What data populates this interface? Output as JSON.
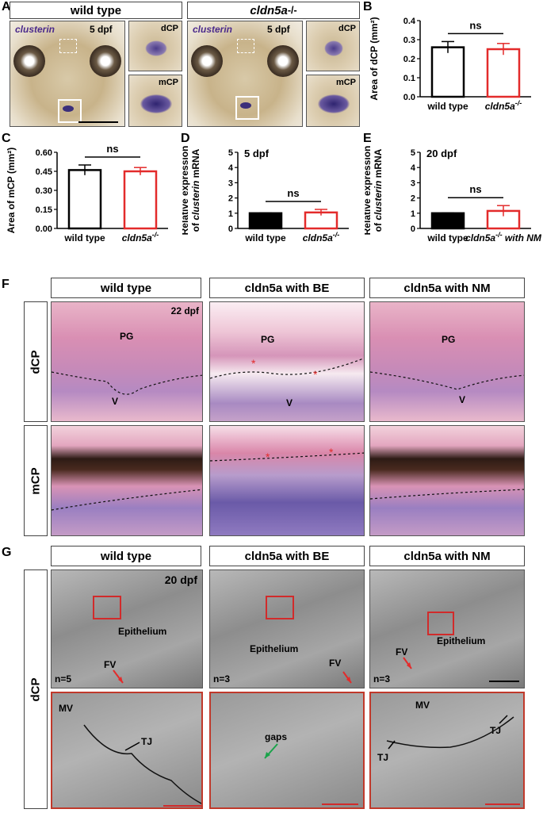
{
  "panels": {
    "A": {
      "label": "A",
      "headers": [
        "wild type",
        "cldn5a"
      ],
      "stain": "clusterin",
      "stage": "5 dpf",
      "insets": [
        "dCP",
        "mCP"
      ]
    },
    "B": {
      "label": "B"
    },
    "C": {
      "label": "C"
    },
    "D": {
      "label": "D",
      "stage": "5 dpf"
    },
    "E": {
      "label": "E",
      "stage": "20 dpf"
    },
    "F": {
      "label": "F",
      "col_headers": [
        "wild type",
        "cldn5a with BE",
        "cldn5a with NM"
      ],
      "row_labels": [
        "dCP",
        "mCP"
      ],
      "stage": "22 dpf",
      "labels": {
        "pg": "PG",
        "v": "V"
      }
    },
    "G": {
      "label": "G",
      "col_headers": [
        "wild type",
        "cldn5a with BE",
        "cldn5a with NM"
      ],
      "row_label": "dCP",
      "stage": "20 dpf",
      "epithelium": "Epithelium",
      "fv": "FV",
      "n": [
        "n=5",
        "n=3",
        "n=3"
      ],
      "mv": "MV",
      "tj": "TJ",
      "gaps": "gaps"
    }
  },
  "chart_data": [
    {
      "type": "bar",
      "panel": "B",
      "categories": [
        "wild type",
        "cldn5a-/-"
      ],
      "values": [
        0.26,
        0.25
      ],
      "errors": [
        0.03,
        0.03
      ],
      "ylabel": "Area of dCP (mm²)",
      "ylim": [
        0.0,
        0.4
      ],
      "yticks": [
        "0.0",
        "0.1",
        "0.2",
        "0.3",
        "0.4"
      ],
      "annotation": "ns",
      "colors": [
        "#000000",
        "#e32b2b"
      ]
    },
    {
      "type": "bar",
      "panel": "C",
      "categories": [
        "wild type",
        "cldn5a-/-"
      ],
      "values": [
        0.46,
        0.45
      ],
      "errors": [
        0.04,
        0.03
      ],
      "ylabel": "Area of mCP (mm²)",
      "ylim": [
        0.0,
        0.6
      ],
      "yticks": [
        "0.00",
        "0.15",
        "0.30",
        "0.45",
        "0.60"
      ],
      "annotation": "ns",
      "colors": [
        "#000000",
        "#e32b2b"
      ]
    },
    {
      "type": "bar",
      "panel": "D",
      "categories": [
        "wild type",
        "cldn5a-/-"
      ],
      "values": [
        1.0,
        1.05
      ],
      "errors": [
        0.02,
        0.2
      ],
      "ylabel": "Relative expression of clusterin mRNA",
      "ylim": [
        0,
        5
      ],
      "yticks": [
        "0",
        "1",
        "2",
        "3",
        "4",
        "5"
      ],
      "annotation": "ns",
      "subtitle": "5 dpf",
      "colors": [
        "#000000",
        "#e32b2b"
      ]
    },
    {
      "type": "bar",
      "panel": "E",
      "categories": [
        "wild type",
        "cldn5a-/- with NM"
      ],
      "values": [
        1.0,
        1.15
      ],
      "errors": [
        0.02,
        0.35
      ],
      "ylabel": "Relative expression of clusterin mRNA",
      "ylim": [
        0,
        5
      ],
      "yticks": [
        "0",
        "1",
        "2",
        "3",
        "4",
        "5"
      ],
      "annotation": "ns",
      "subtitle": "20 dpf",
      "colors": [
        "#000000",
        "#e32b2b"
      ]
    }
  ]
}
